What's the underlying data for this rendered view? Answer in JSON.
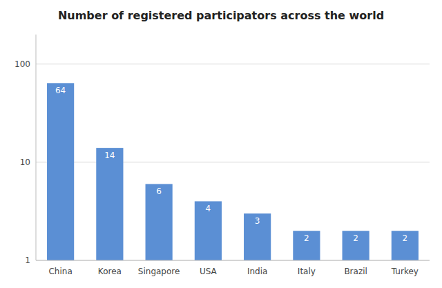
{
  "chart_data": {
    "type": "bar",
    "title": "Number of registered participators across the world",
    "categories": [
      "China",
      "Korea",
      "Singapore",
      "USA",
      "India",
      "Italy",
      "Brazil",
      "Turkey"
    ],
    "values": [
      64,
      14,
      6,
      4,
      3,
      2,
      2,
      2
    ],
    "color": "#5b8fd4",
    "ylim": [
      1,
      200
    ],
    "yticks": [
      1,
      10,
      100
    ],
    "log": "y",
    "grid": true,
    "data_labels": true
  }
}
